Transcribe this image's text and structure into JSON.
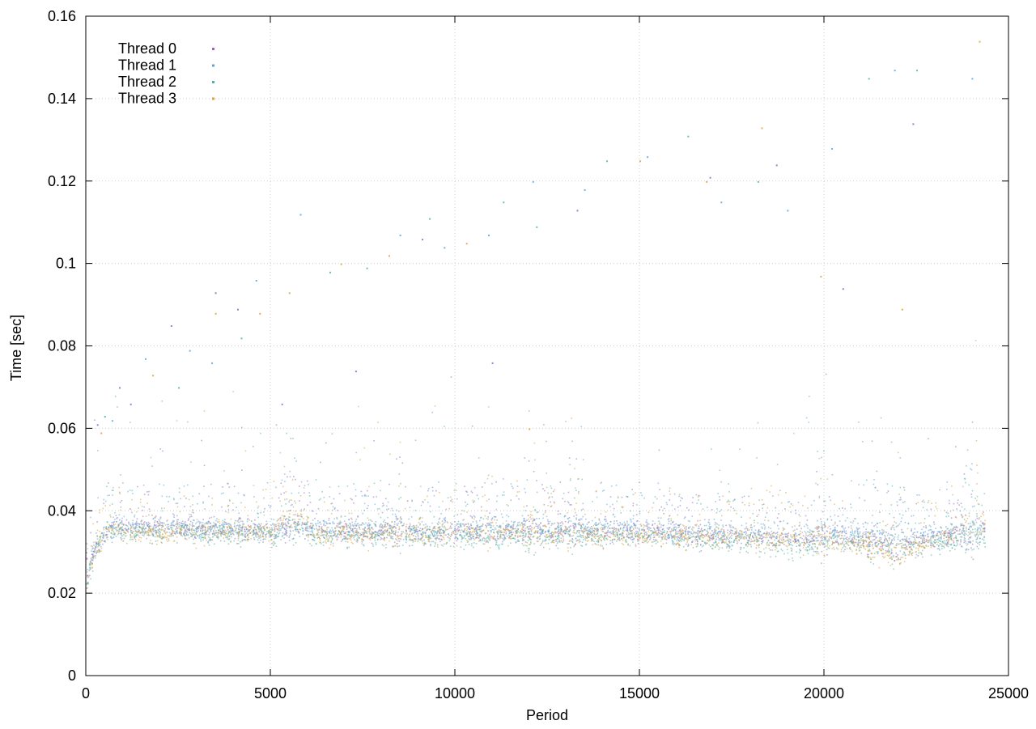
{
  "chart_data": {
    "type": "scatter",
    "title": "",
    "xlabel": "Period",
    "ylabel": "Time [sec]",
    "xlim": [
      0,
      25000
    ],
    "ylim": [
      0,
      0.16
    ],
    "x_ticks": [
      0,
      5000,
      10000,
      15000,
      20000,
      25000
    ],
    "x_tick_labels": [
      "0",
      "5000",
      "10000",
      "15000",
      "20000",
      "25000"
    ],
    "y_ticks": [
      0,
      0.02,
      0.04,
      0.06,
      0.08,
      0.1,
      0.12,
      0.14,
      0.16
    ],
    "y_tick_labels": [
      "0",
      "0.02",
      "0.04",
      "0.06",
      "0.08",
      "0.1",
      "0.12",
      "0.14",
      "0.16"
    ],
    "grid": true,
    "legend_position": "top-left",
    "x_max_period": 24350,
    "series": [
      {
        "name": "Thread 0",
        "color": "#9467bd",
        "baseline": [
          [
            0,
            0.022
          ],
          [
            200,
            0.031
          ],
          [
            600,
            0.036
          ],
          [
            2000,
            0.036
          ],
          [
            5000,
            0.035
          ],
          [
            5600,
            0.037
          ],
          [
            6200,
            0.035
          ],
          [
            10000,
            0.035
          ],
          [
            15000,
            0.035
          ],
          [
            19500,
            0.033
          ],
          [
            20200,
            0.034
          ],
          [
            22000,
            0.032
          ],
          [
            23600,
            0.034
          ],
          [
            24350,
            0.035
          ]
        ],
        "outliers": [
          [
            300,
            0.061
          ],
          [
            900,
            0.07
          ],
          [
            1200,
            0.066
          ],
          [
            2300,
            0.085
          ],
          [
            3500,
            0.093
          ],
          [
            4100,
            0.089
          ],
          [
            5300,
            0.066
          ],
          [
            7300,
            0.074
          ],
          [
            9100,
            0.106
          ],
          [
            11000,
            0.076
          ],
          [
            13300,
            0.113
          ],
          [
            16900,
            0.121
          ],
          [
            18700,
            0.124
          ],
          [
            20500,
            0.094
          ],
          [
            22400,
            0.134
          ]
        ]
      },
      {
        "name": "Thread 1",
        "color": "#5fa3d6",
        "baseline": [
          [
            0,
            0.022
          ],
          [
            200,
            0.031
          ],
          [
            600,
            0.036
          ],
          [
            2000,
            0.036
          ],
          [
            5000,
            0.036
          ],
          [
            5600,
            0.037
          ],
          [
            6200,
            0.036
          ],
          [
            10000,
            0.036
          ],
          [
            15000,
            0.036
          ],
          [
            19500,
            0.034
          ],
          [
            20200,
            0.035
          ],
          [
            22000,
            0.034
          ],
          [
            23600,
            0.035
          ],
          [
            24350,
            0.036
          ]
        ],
        "outliers": [
          [
            700,
            0.062
          ],
          [
            1600,
            0.077
          ],
          [
            2800,
            0.079
          ],
          [
            3400,
            0.076
          ],
          [
            4600,
            0.096
          ],
          [
            5800,
            0.112
          ],
          [
            8500,
            0.107
          ],
          [
            9700,
            0.104
          ],
          [
            10900,
            0.107
          ],
          [
            12100,
            0.12
          ],
          [
            13500,
            0.118
          ],
          [
            15200,
            0.126
          ],
          [
            17200,
            0.115
          ],
          [
            19000,
            0.113
          ],
          [
            20200,
            0.128
          ],
          [
            21900,
            0.147
          ],
          [
            24000,
            0.145
          ]
        ]
      },
      {
        "name": "Thread 2",
        "color": "#4db3a8",
        "baseline": [
          [
            0,
            0.022
          ],
          [
            200,
            0.03
          ],
          [
            600,
            0.035
          ],
          [
            2000,
            0.035
          ],
          [
            5000,
            0.034
          ],
          [
            5600,
            0.036
          ],
          [
            6200,
            0.034
          ],
          [
            10000,
            0.034
          ],
          [
            15000,
            0.034
          ],
          [
            19500,
            0.031
          ],
          [
            20200,
            0.033
          ],
          [
            22000,
            0.031
          ],
          [
            23600,
            0.033
          ],
          [
            24350,
            0.034
          ]
        ],
        "outliers": [
          [
            500,
            0.063
          ],
          [
            2500,
            0.07
          ],
          [
            4200,
            0.082
          ],
          [
            6600,
            0.098
          ],
          [
            7600,
            0.099
          ],
          [
            9300,
            0.111
          ],
          [
            11300,
            0.115
          ],
          [
            12200,
            0.109
          ],
          [
            14100,
            0.125
          ],
          [
            16300,
            0.131
          ],
          [
            18200,
            0.12
          ],
          [
            21200,
            0.145
          ],
          [
            22500,
            0.147
          ]
        ]
      },
      {
        "name": "Thread 3",
        "color": "#d8a338",
        "baseline": [
          [
            0,
            0.022
          ],
          [
            200,
            0.03
          ],
          [
            600,
            0.035
          ],
          [
            2000,
            0.035
          ],
          [
            5000,
            0.035
          ],
          [
            5600,
            0.04
          ],
          [
            6200,
            0.034
          ],
          [
            10000,
            0.035
          ],
          [
            15000,
            0.034
          ],
          [
            19500,
            0.033
          ],
          [
            20200,
            0.033
          ],
          [
            22000,
            0.03
          ],
          [
            23600,
            0.035
          ],
          [
            24350,
            0.037
          ]
        ],
        "outliers": [
          [
            400,
            0.059
          ],
          [
            1800,
            0.073
          ],
          [
            3500,
            0.088
          ],
          [
            4700,
            0.088
          ],
          [
            5500,
            0.093
          ],
          [
            6900,
            0.1
          ],
          [
            8200,
            0.102
          ],
          [
            10300,
            0.105
          ],
          [
            12000,
            0.06
          ],
          [
            15000,
            0.125
          ],
          [
            16800,
            0.12
          ],
          [
            18300,
            0.133
          ],
          [
            19900,
            0.097
          ],
          [
            22100,
            0.089
          ],
          [
            24200,
            0.154
          ]
        ]
      }
    ]
  }
}
